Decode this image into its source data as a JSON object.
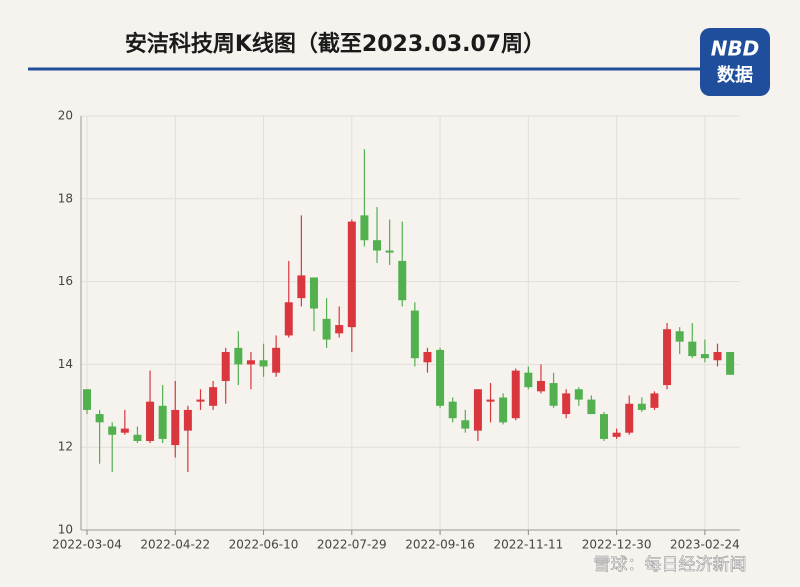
{
  "chart_data": {
    "type": "candlestick",
    "title": "安洁科技周K线图（截至2023.03.07周）",
    "logo": [
      "NBD",
      "数据"
    ],
    "watermark": "雪球：每日经济新闻",
    "categories": [
      "2022-03-04",
      null,
      null,
      null,
      null,
      null,
      null,
      "2022-04-22",
      null,
      null,
      null,
      null,
      null,
      null,
      "2022-06-10",
      null,
      null,
      null,
      null,
      null,
      null,
      "2022-07-29",
      null,
      null,
      null,
      null,
      null,
      null,
      "2022-09-16",
      null,
      null,
      null,
      null,
      null,
      null,
      "2022-11-11",
      null,
      null,
      null,
      null,
      null,
      null,
      "2022-12-30",
      null,
      null,
      null,
      null,
      null,
      null,
      "2023-02-24",
      null,
      null
    ],
    "series": [
      {
        "up_color": "#d9363e",
        "down_color": "#52b04f",
        "open": [
          13.4,
          12.8,
          12.5,
          12.35,
          12.3,
          12.15,
          13.0,
          12.05,
          12.4,
          13.1,
          13.0,
          13.6,
          14.4,
          14.0,
          14.1,
          13.8,
          14.7,
          15.6,
          16.1,
          15.1,
          14.75,
          14.9,
          17.6,
          17.0,
          16.75,
          16.5,
          15.3,
          14.05,
          14.35,
          13.1,
          12.65,
          12.4,
          13.1,
          13.2,
          12.7,
          13.8,
          13.35,
          13.55,
          12.8,
          13.4,
          13.15,
          12.8,
          12.25,
          12.35,
          13.05,
          12.95,
          13.5,
          14.8,
          14.55,
          14.25,
          14.1,
          14.3
        ],
        "high": [
          13.4,
          12.9,
          12.6,
          12.9,
          12.5,
          13.85,
          13.5,
          13.6,
          13.0,
          13.4,
          13.6,
          14.4,
          14.8,
          14.3,
          14.5,
          14.7,
          16.5,
          17.6,
          16.1,
          15.6,
          15.4,
          17.5,
          19.2,
          17.8,
          17.5,
          17.45,
          15.5,
          14.4,
          14.4,
          13.2,
          12.9,
          13.4,
          13.55,
          13.3,
          13.9,
          13.95,
          14.0,
          13.8,
          13.4,
          13.45,
          13.25,
          12.85,
          12.45,
          13.25,
          13.2,
          13.35,
          15.0,
          14.9,
          15.0,
          14.6,
          14.5,
          14.3
        ],
        "low": [
          12.8,
          11.6,
          11.4,
          12.3,
          12.1,
          12.1,
          12.1,
          11.75,
          11.4,
          12.9,
          12.9,
          13.05,
          13.5,
          13.4,
          13.7,
          13.7,
          14.65,
          15.4,
          14.8,
          14.4,
          14.65,
          14.3,
          16.85,
          16.45,
          16.4,
          15.4,
          13.95,
          13.8,
          12.95,
          12.6,
          12.35,
          12.15,
          12.6,
          12.55,
          12.65,
          13.4,
          13.3,
          12.95,
          12.7,
          13.0,
          12.8,
          12.15,
          12.2,
          12.3,
          12.85,
          12.9,
          13.4,
          14.25,
          14.15,
          14.05,
          13.95,
          13.75
        ],
        "close": [
          12.9,
          12.6,
          12.3,
          12.45,
          12.15,
          13.1,
          12.2,
          12.9,
          12.9,
          13.15,
          13.45,
          14.3,
          14.0,
          14.1,
          13.95,
          14.4,
          15.5,
          16.15,
          15.35,
          14.6,
          14.95,
          17.45,
          17.0,
          16.75,
          16.7,
          15.55,
          14.15,
          14.3,
          13.0,
          12.7,
          12.45,
          13.4,
          13.15,
          12.6,
          13.85,
          13.45,
          13.6,
          13.0,
          13.3,
          13.15,
          12.8,
          12.2,
          12.35,
          13.05,
          12.9,
          13.3,
          14.85,
          14.55,
          14.2,
          14.15,
          14.3,
          13.75
        ]
      }
    ],
    "ylim": [
      10,
      20
    ],
    "yticks": [
      10,
      12,
      14,
      16,
      18,
      20
    ],
    "grid": true
  }
}
